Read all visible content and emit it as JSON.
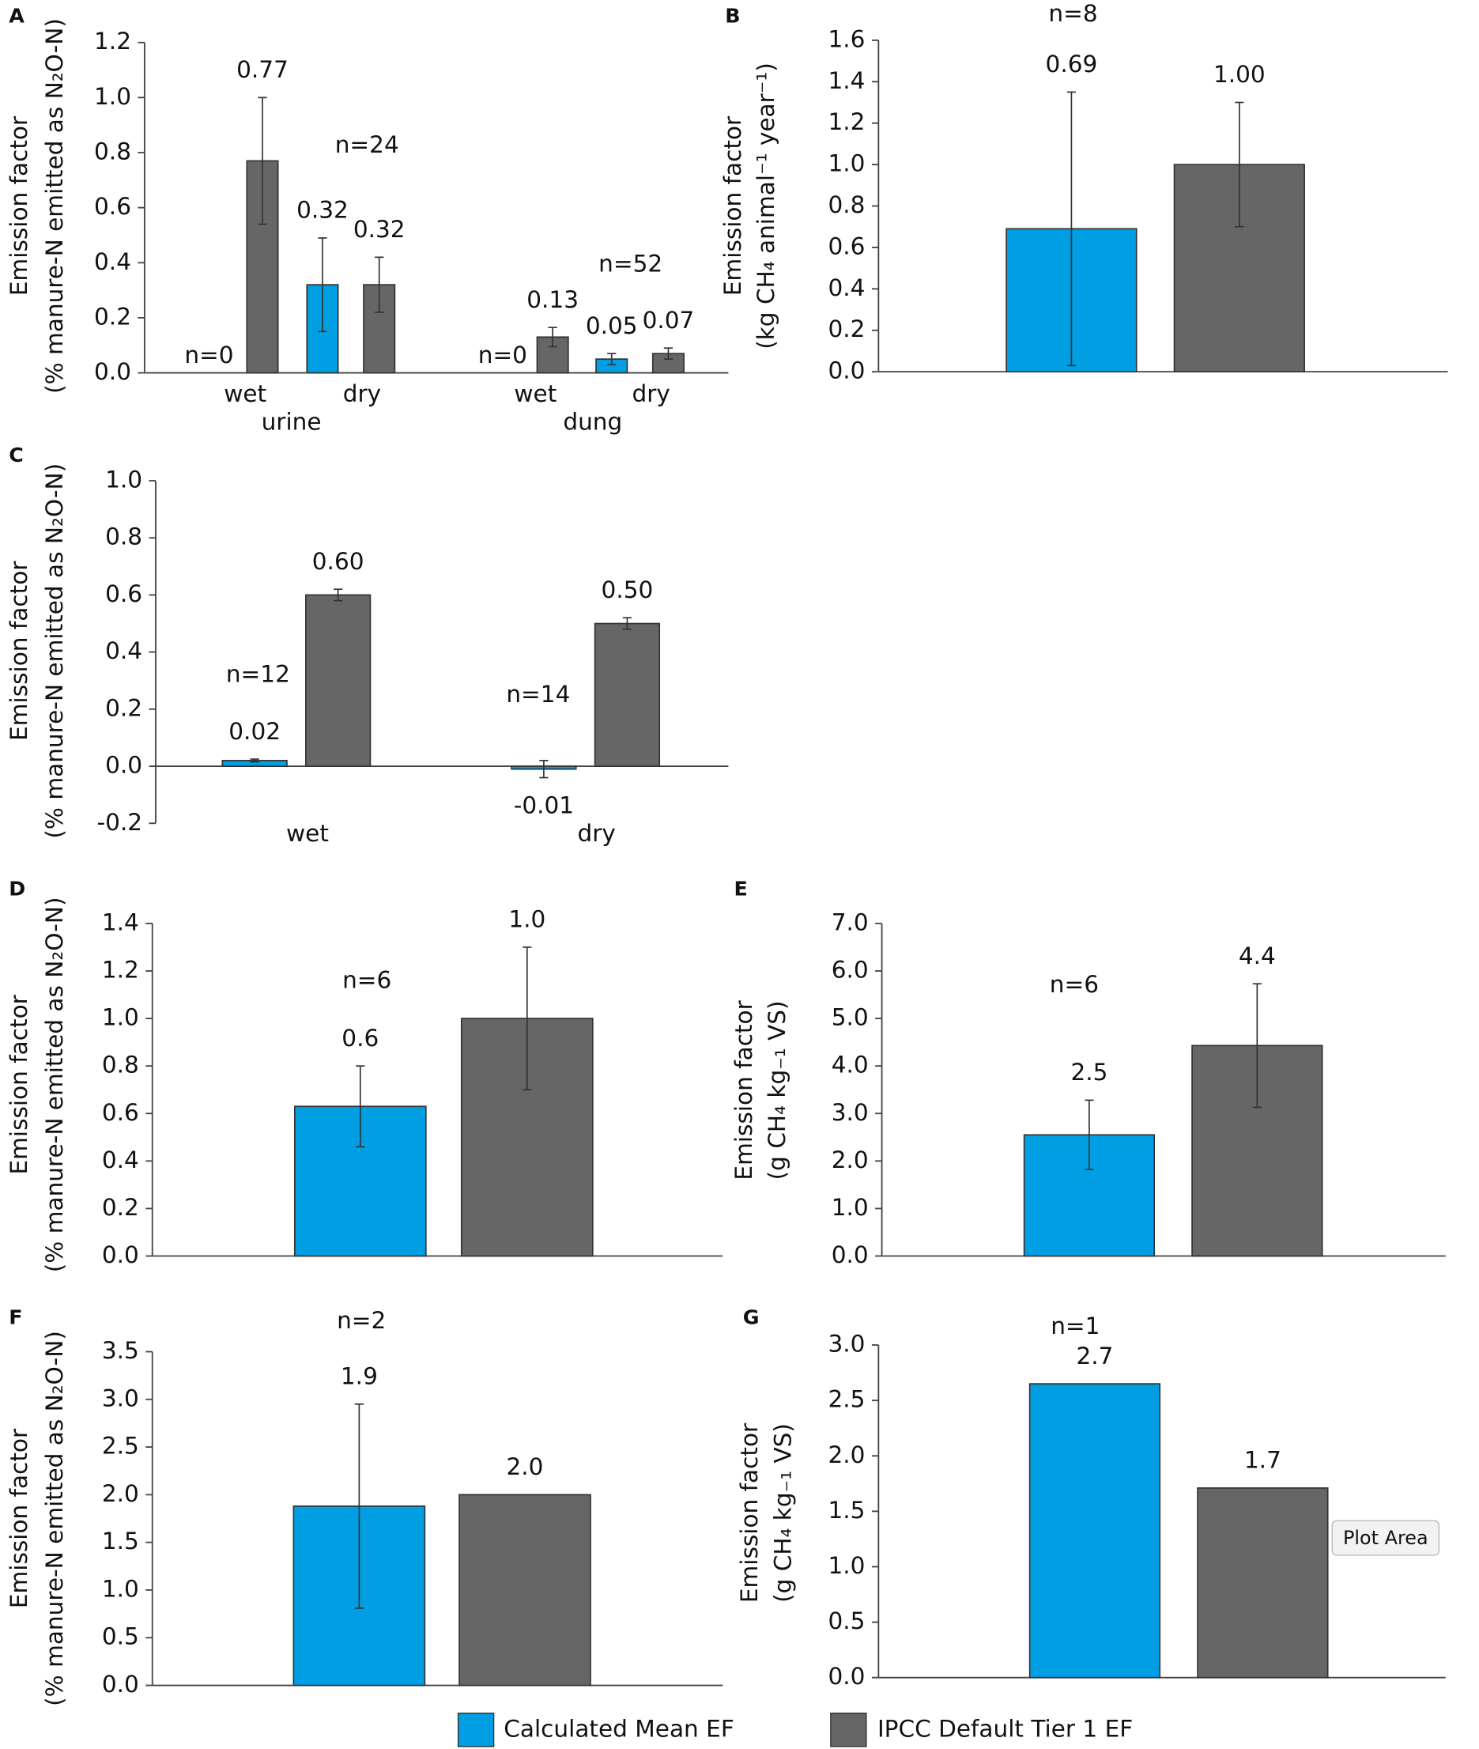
{
  "chart_data": [
    {
      "type": "bar",
      "panel": "A",
      "ylabel": [
        "Emission factor",
        "(% manure-N emitted as N₂O-N)"
      ],
      "categories": [
        "wet",
        "dry",
        "wet",
        "dry"
      ],
      "groups": [
        "urine",
        "dung"
      ],
      "ylim": [
        0,
        1.2
      ],
      "yticks": [
        {
          "value": 0,
          "label": "0.0"
        },
        0.2,
        0.4,
        0.6,
        0.8,
        {
          "value": 1,
          "label": "1.0"
        },
        1.2
      ],
      "series": [
        {
          "name": "Calculated Mean EF",
          "color": "#009fe3",
          "values": [
            null,
            0.32,
            null,
            0.05
          ],
          "errors": [
            null,
            0.17,
            null,
            0.02
          ],
          "value_labels": [
            null,
            "0.32",
            null,
            "0.05"
          ]
        },
        {
          "name": "IPCC Default Tier 1 EF",
          "color": "#666666",
          "values": [
            0.77,
            0.32,
            0.13,
            0.07
          ],
          "errors": [
            0.23,
            0.1,
            0.035,
            0.02
          ],
          "value_labels": [
            "0.77",
            "0.32",
            "0.13",
            "0.07"
          ]
        }
      ],
      "annotations": [
        "n=0",
        "n=24",
        "n=0",
        "n=52"
      ]
    },
    {
      "type": "bar",
      "panel": "B",
      "ylabel": [
        "Emission factor",
        "(kg CH₄ animal⁻¹ year⁻¹)"
      ],
      "categories": [
        null
      ],
      "ylim": [
        0,
        1.6
      ],
      "yticks": [
        {
          "value": 0,
          "label": "0.0"
        },
        0.2,
        0.4,
        0.6,
        0.8,
        {
          "value": 1,
          "label": "1.0"
        },
        1.2,
        1.4,
        1.6
      ],
      "series": [
        {
          "name": "Calculated Mean EF",
          "color": "#009fe3",
          "values": [
            0.69
          ],
          "errors": [
            0.66
          ],
          "value_labels": [
            "0.69"
          ]
        },
        {
          "name": "IPCC Default Tier 1 EF",
          "color": "#666666",
          "values": [
            1
          ],
          "errors": [
            0.3
          ],
          "value_labels": [
            "1.00"
          ]
        }
      ],
      "annotations": [
        "n=8"
      ]
    },
    {
      "type": "bar",
      "panel": "C",
      "ylabel": [
        "Emission factor",
        "(% manure-N emitted as N₂O-N)"
      ],
      "categories": [
        "wet",
        "dry"
      ],
      "ylim": [
        -0.2,
        1
      ],
      "yticks": [
        -0.2,
        {
          "value": 0,
          "label": "0.0"
        },
        0.2,
        0.4,
        0.6,
        0.8,
        {
          "value": 1,
          "label": "1.0"
        }
      ],
      "series": [
        {
          "name": "Calculated Mean EF",
          "color": "#009fe3",
          "values": [
            0.02,
            -0.01
          ],
          "errors": [
            0.005,
            0.03
          ],
          "value_labels": [
            "0.02",
            "-0.01"
          ]
        },
        {
          "name": "IPCC Default Tier 1 EF",
          "color": "#666666",
          "values": [
            0.6,
            0.5
          ],
          "errors": [
            0.02,
            0.02
          ],
          "value_labels": [
            "0.60",
            "0.50"
          ]
        }
      ],
      "annotations": [
        "n=12",
        "n=14"
      ]
    },
    {
      "type": "bar",
      "panel": "D",
      "ylabel": [
        "Emission factor",
        "(% manure-N emitted as N₂O-N)"
      ],
      "categories": [
        null
      ],
      "ylim": [
        0,
        1.4
      ],
      "yticks": [
        {
          "value": 0,
          "label": "0.0"
        },
        0.2,
        0.4,
        0.6,
        0.8,
        {
          "value": 1,
          "label": "1.0"
        },
        1.2,
        1.4
      ],
      "series": [
        {
          "name": "Calculated Mean EF",
          "color": "#009fe3",
          "values": [
            0.63
          ],
          "errors": [
            0.17
          ],
          "value_labels": [
            "0.6"
          ]
        },
        {
          "name": "IPCC Default Tier 1 EF",
          "color": "#666666",
          "values": [
            1
          ],
          "errors": [
            0.3
          ],
          "value_labels": [
            "1.0"
          ]
        }
      ],
      "annotations": [
        "n=6"
      ]
    },
    {
      "type": "bar",
      "panel": "E",
      "ylabel": [
        "Emission factor",
        "(g CH₄ kg₋₁ VS)"
      ],
      "categories": [
        null
      ],
      "ylim": [
        0,
        7
      ],
      "yticks": [
        {
          "value": 0,
          "label": "0.0"
        },
        {
          "value": 1,
          "label": "1.0"
        },
        {
          "value": 2,
          "label": "2.0"
        },
        {
          "value": 3,
          "label": "3.0"
        },
        {
          "value": 4,
          "label": "4.0"
        },
        {
          "value": 5,
          "label": "5.0"
        },
        {
          "value": 6,
          "label": "6.0"
        },
        {
          "value": 7,
          "label": "7.0"
        }
      ],
      "series": [
        {
          "name": "Calculated Mean EF",
          "color": "#009fe3",
          "values": [
            2.55
          ],
          "errors": [
            0.73
          ],
          "value_labels": [
            "2.5"
          ]
        },
        {
          "name": "IPCC Default Tier 1 EF",
          "color": "#666666",
          "values": [
            4.43
          ],
          "errors": [
            1.3
          ],
          "value_labels": [
            "4.4"
          ]
        }
      ],
      "annotations": [
        "n=6"
      ]
    },
    {
      "type": "bar",
      "panel": "F",
      "ylabel": [
        "Emission factor",
        "(% manure-N emitted as N₂O-N)"
      ],
      "categories": [
        null
      ],
      "ylim": [
        0,
        3.5
      ],
      "yticks": [
        {
          "value": 0,
          "label": "0.0"
        },
        0.5,
        {
          "value": 1,
          "label": "1.0"
        },
        1.5,
        {
          "value": 2,
          "label": "2.0"
        },
        2.5,
        {
          "value": 3,
          "label": "3.0"
        },
        3.5
      ],
      "series": [
        {
          "name": "Calculated Mean EF",
          "color": "#009fe3",
          "values": [
            1.88
          ],
          "errors": [
            1.07
          ],
          "value_labels": [
            "1.9"
          ]
        },
        {
          "name": "IPCC Default Tier 1 EF",
          "color": "#666666",
          "values": [
            2
          ],
          "errors": [
            null
          ],
          "value_labels": [
            "2.0"
          ]
        }
      ],
      "annotations": [
        "n=2"
      ]
    },
    {
      "type": "bar",
      "panel": "G",
      "ylabel": [
        "Emission factor",
        "(g CH₄ kg₋₁ VS)"
      ],
      "categories": [
        null
      ],
      "ylim": [
        0,
        3
      ],
      "yticks": [
        {
          "value": 0,
          "label": "0.0"
        },
        0.5,
        {
          "value": 1,
          "label": "1.0"
        },
        1.5,
        {
          "value": 2,
          "label": "2.0"
        },
        2.5,
        {
          "value": 3,
          "label": "3.0"
        }
      ],
      "series": [
        {
          "name": "Calculated Mean EF",
          "color": "#009fe3",
          "values": [
            2.65
          ],
          "errors": [
            null
          ],
          "value_labels": [
            "2.7"
          ]
        },
        {
          "name": "IPCC Default Tier 1 EF",
          "color": "#666666",
          "values": [
            1.71
          ],
          "errors": [
            null
          ],
          "value_labels": [
            "1.7"
          ]
        }
      ],
      "annotations": [
        "n=1"
      ]
    }
  ],
  "tooltip": "Plot Area"
}
